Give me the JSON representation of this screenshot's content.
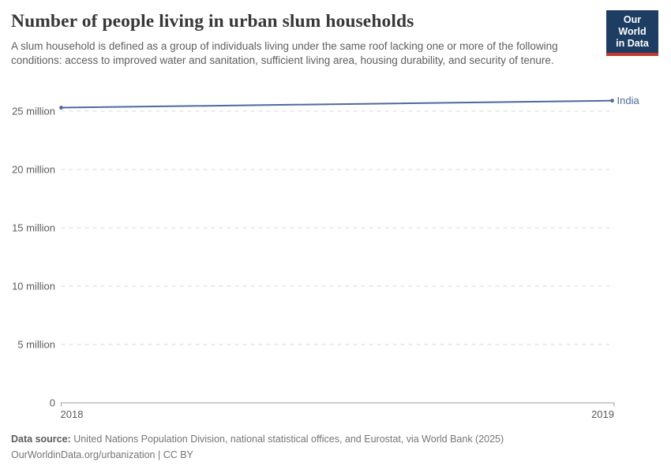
{
  "header": {
    "title": "Number of people living in urban slum households",
    "subtitle": "A slum household is defined as a group of individuals living under the same roof lacking one or more of the following conditions: access to improved water and sanitation, sufficient living area, housing durability, and security of tenure."
  },
  "logo": {
    "line1": "Our World",
    "line2": "in Data",
    "bg_color": "#1d3d63",
    "accent_color": "#c4372c"
  },
  "chart_data": {
    "type": "line",
    "title": "Number of people living in urban slum households",
    "x": [
      2018,
      2019
    ],
    "xtick_labels": [
      "2018",
      "2019"
    ],
    "series": [
      {
        "name": "India",
        "values": [
          25.3,
          25.9
        ],
        "color": "#4c6a9c"
      }
    ],
    "unit": "million",
    "ylim": [
      0,
      26.5
    ],
    "yticks": [
      {
        "value": 0,
        "label": "0"
      },
      {
        "value": 5,
        "label": "5 million"
      },
      {
        "value": 10,
        "label": "10 million"
      },
      {
        "value": 15,
        "label": "15 million"
      },
      {
        "value": 20,
        "label": "20 million"
      },
      {
        "value": 25,
        "label": "25 million"
      }
    ],
    "grid": "horizontal dashed",
    "grid_color": "#d9d9d9",
    "axis_color": "#9e9e9e",
    "tick_label_color": "#5c5c5c",
    "legend_position": "end-of-line"
  },
  "footer": {
    "source_label": "Data source:",
    "source_text": " United Nations Population Division, national statistical offices, and Eurostat, via World Bank (2025)",
    "note_text": "OurWorldinData.org/urbanization | CC BY"
  }
}
